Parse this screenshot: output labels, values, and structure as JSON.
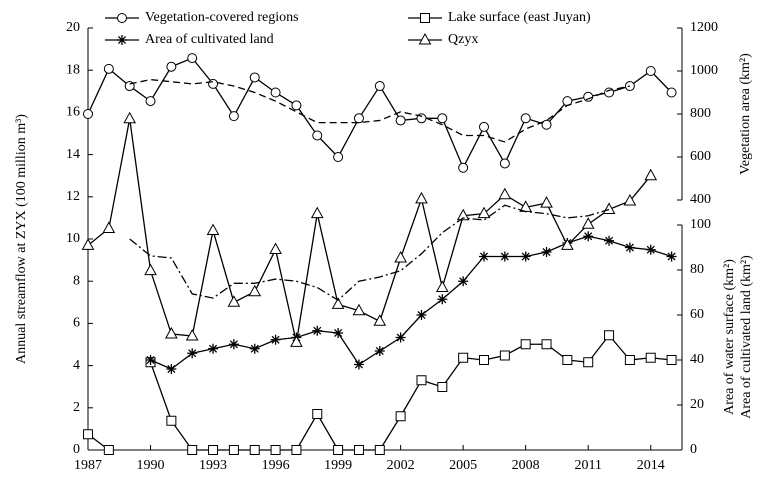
{
  "chart_data": {
    "type": "line",
    "x": [
      1987,
      1988,
      1989,
      1990,
      1991,
      1992,
      1993,
      1994,
      1995,
      1996,
      1997,
      1998,
      1999,
      2000,
      2001,
      2002,
      2003,
      2004,
      2005,
      2006,
      2007,
      2008,
      2009,
      2010,
      2011,
      2012,
      2013,
      2014,
      2015
    ],
    "xlim": [
      1987,
      2015.5
    ],
    "xticks": [
      1987,
      1990,
      1993,
      1996,
      1999,
      2002,
      2005,
      2008,
      2011,
      2014
    ],
    "ylim": [
      0,
      20
    ],
    "yticks": [
      0,
      2,
      4,
      6,
      8,
      10,
      12,
      14,
      16,
      18,
      20
    ],
    "y2lim": [
      400,
      1200
    ],
    "y2ticks": [
      400,
      600,
      800,
      1000,
      1200
    ],
    "y3lim": [
      0,
      100
    ],
    "y3ticks": [
      0,
      20,
      40,
      60,
      80,
      100
    ],
    "ylabel": "Annual streamflow at ZYX (100 million m³)",
    "y2label": "Vegetation area (km²)",
    "y3labels": [
      "Area of water surface (km²)",
      "Area of cultivated land (km²)"
    ],
    "series": [
      {
        "name": "Vegetation-covered regions",
        "color": "#000000",
        "marker": "circle",
        "axis": "y2",
        "values": [
          800,
          1010,
          930,
          860,
          1020,
          1060,
          940,
          790,
          970,
          900,
          840,
          700,
          600,
          780,
          930,
          770,
          780,
          780,
          550,
          740,
          570,
          780,
          750,
          860,
          880,
          900,
          930,
          1000,
          900
        ]
      },
      {
        "name": "Lake surface (east Juyan)",
        "color": "#000000",
        "marker": "square",
        "axis": "y3",
        "values": [
          7,
          0,
          null,
          39,
          13,
          0,
          0,
          0,
          0,
          0,
          0,
          16,
          0,
          0,
          0,
          15,
          31,
          28,
          41,
          40,
          42,
          47,
          47,
          40,
          39,
          51,
          40,
          41,
          40
        ]
      },
      {
        "name": "Area of cultivated land",
        "color": "#000000",
        "marker": "star",
        "axis": "y3",
        "values": [
          null,
          null,
          null,
          40,
          36,
          43,
          45,
          47,
          45,
          49,
          50,
          53,
          52,
          38,
          44,
          50,
          60,
          67,
          75,
          86,
          86,
          86,
          88,
          92,
          95,
          93,
          90,
          89,
          86
        ]
      },
      {
        "name": "Qzyx",
        "color": "#000000",
        "marker": "triangle",
        "axis": "y",
        "values": [
          9.7,
          10.5,
          15.7,
          8.5,
          5.5,
          5.4,
          10.4,
          7.0,
          7.5,
          9.5,
          5.1,
          11.2,
          6.9,
          6.6,
          6.1,
          9.1,
          11.9,
          7.7,
          11.1,
          11.2,
          12.1,
          11.5,
          11.7,
          9.7,
          10.7,
          11.4,
          11.8,
          13.0,
          null
        ]
      },
      {
        "color": "#000000",
        "dash": "dashed",
        "axis": "y2",
        "values": [
          null,
          null,
          940,
          960,
          950,
          940,
          950,
          930,
          900,
          860,
          810,
          760,
          760,
          760,
          770,
          810,
          790,
          750,
          700,
          700,
          670,
          730,
          770,
          840,
          870,
          910,
          930,
          null,
          null
        ]
      },
      {
        "color": "#000000",
        "dash": "dashdot",
        "axis": "y",
        "values": [
          null,
          null,
          10.0,
          9.2,
          9.1,
          7.4,
          7.2,
          7.9,
          7.9,
          8.1,
          8.0,
          7.7,
          7.1,
          8.0,
          8.2,
          8.5,
          9.3,
          10.3,
          11.0,
          10.9,
          11.6,
          11.3,
          11.2,
          11.0,
          11.1,
          11.4,
          null,
          null,
          null
        ]
      }
    ]
  }
}
